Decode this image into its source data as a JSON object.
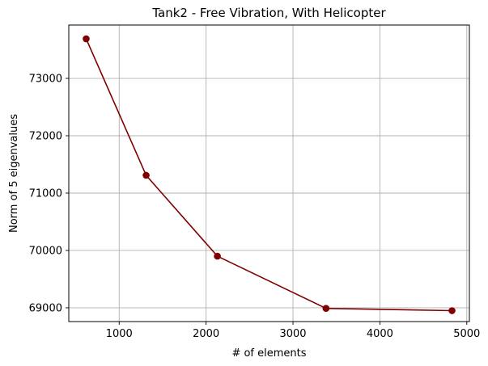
{
  "chart_data": {
    "type": "line",
    "title": "Tank2 - Free Vibration, With Helicopter",
    "xlabel": "# of elements",
    "ylabel": "Norm of 5 eigenvalues",
    "x": [
      620,
      1310,
      2130,
      3380,
      4830
    ],
    "series": [
      {
        "values": [
          73690,
          71310,
          69900,
          68990,
          68950
        ],
        "color": "#800000",
        "marker": "circle"
      }
    ],
    "xlim": [
      420,
      5030
    ],
    "ylim": [
      68760,
      73930
    ],
    "xticks": [
      1000,
      2000,
      3000,
      4000,
      5000
    ],
    "xtick_labels": [
      "1000",
      "2000",
      "3000",
      "4000",
      "5000"
    ],
    "yticks": [
      69000,
      70000,
      71000,
      72000,
      73000
    ],
    "ytick_labels": [
      "69000",
      "70000",
      "71000",
      "72000",
      "73000"
    ],
    "grid": true,
    "grid_color": "#b0b0b0"
  }
}
